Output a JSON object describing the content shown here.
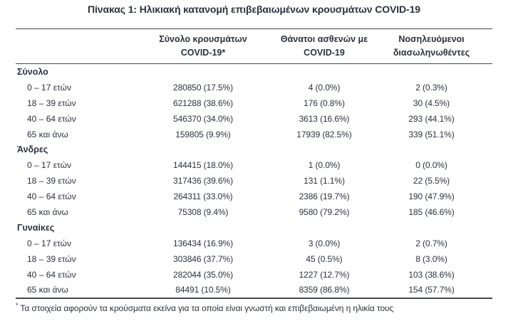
{
  "title": "Πίνακας 1: Ηλικιακή κατανομή επιβεβαιωμένων κρουσμάτων COVID-19",
  "colors": {
    "text": "#2c313d",
    "rule": "#45474c",
    "background": "#ffffff"
  },
  "table": {
    "columns": [
      {
        "line1": "",
        "line2": ""
      },
      {
        "line1": "Σύνολο κρουσμάτων",
        "line2": "COVID-19*"
      },
      {
        "line1": "Θάνατοι ασθενών με",
        "line2": "COVID-19"
      },
      {
        "line1": "Νοσηλευόμενοι",
        "line2": "διασωληνωθέντες"
      }
    ],
    "sections": [
      {
        "label": "Σύνολο",
        "rows": [
          {
            "label": "0 – 17 ετών",
            "cases": "280850 (17.5%)",
            "deaths": "4 (0.0%)",
            "intubated": "2 (0.3%)"
          },
          {
            "label": "18 – 39 ετών",
            "cases": "621288 (38.6%)",
            "deaths": "176 (0.8%)",
            "intubated": "30 (4.5%)"
          },
          {
            "label": "40 – 64 ετών",
            "cases": "546370 (34.0%)",
            "deaths": "3613 (16.6%)",
            "intubated": "293 (44.1%)"
          },
          {
            "label": "65 και άνω",
            "cases": "159805 (9.9%)",
            "deaths": "17939 (82.5%)",
            "intubated": "339 (51.1%)"
          }
        ]
      },
      {
        "label": "Άνδρες",
        "rows": [
          {
            "label": "0 – 17 ετών",
            "cases": "144415 (18.0%)",
            "deaths": "1 (0.0%)",
            "intubated": "0 (0.0%)"
          },
          {
            "label": "18 – 39 ετών",
            "cases": "317436 (39.6%)",
            "deaths": "131 (1.1%)",
            "intubated": "22 (5.5%)"
          },
          {
            "label": "40 – 64 ετών",
            "cases": "264311 (33.0%)",
            "deaths": "2386 (19.7%)",
            "intubated": "190 (47.9%)"
          },
          {
            "label": "65 και άνω",
            "cases": "75308 (9.4%)",
            "deaths": "9580 (79.2%)",
            "intubated": "185 (46.6%)"
          }
        ]
      },
      {
        "label": "Γυναίκες",
        "rows": [
          {
            "label": "0 – 17 ετών",
            "cases": "136434 (16.9%)",
            "deaths": "3 (0.0%)",
            "intubated": "2 (0.7%)"
          },
          {
            "label": "18 – 39 ετών",
            "cases": "303846 (37.7%)",
            "deaths": "45 (0.5%)",
            "intubated": "8 (3.0%)"
          },
          {
            "label": "40 – 64 ετών",
            "cases": "282044 (35.0%)",
            "deaths": "1227 (12.7%)",
            "intubated": "103 (38.6%)"
          },
          {
            "label": "65 και άνω",
            "cases": "84491 (10.5%)",
            "deaths": "8359 (86.8%)",
            "intubated": "154 (57.7%)"
          }
        ]
      }
    ]
  },
  "footnote": {
    "marker": "*",
    "text": "Τα στοιχεία αφορούν τα κρούσματα εκείνα για τα οποία είναι γνωστή και επιβεβαιωμένη η ηλικία τους"
  }
}
